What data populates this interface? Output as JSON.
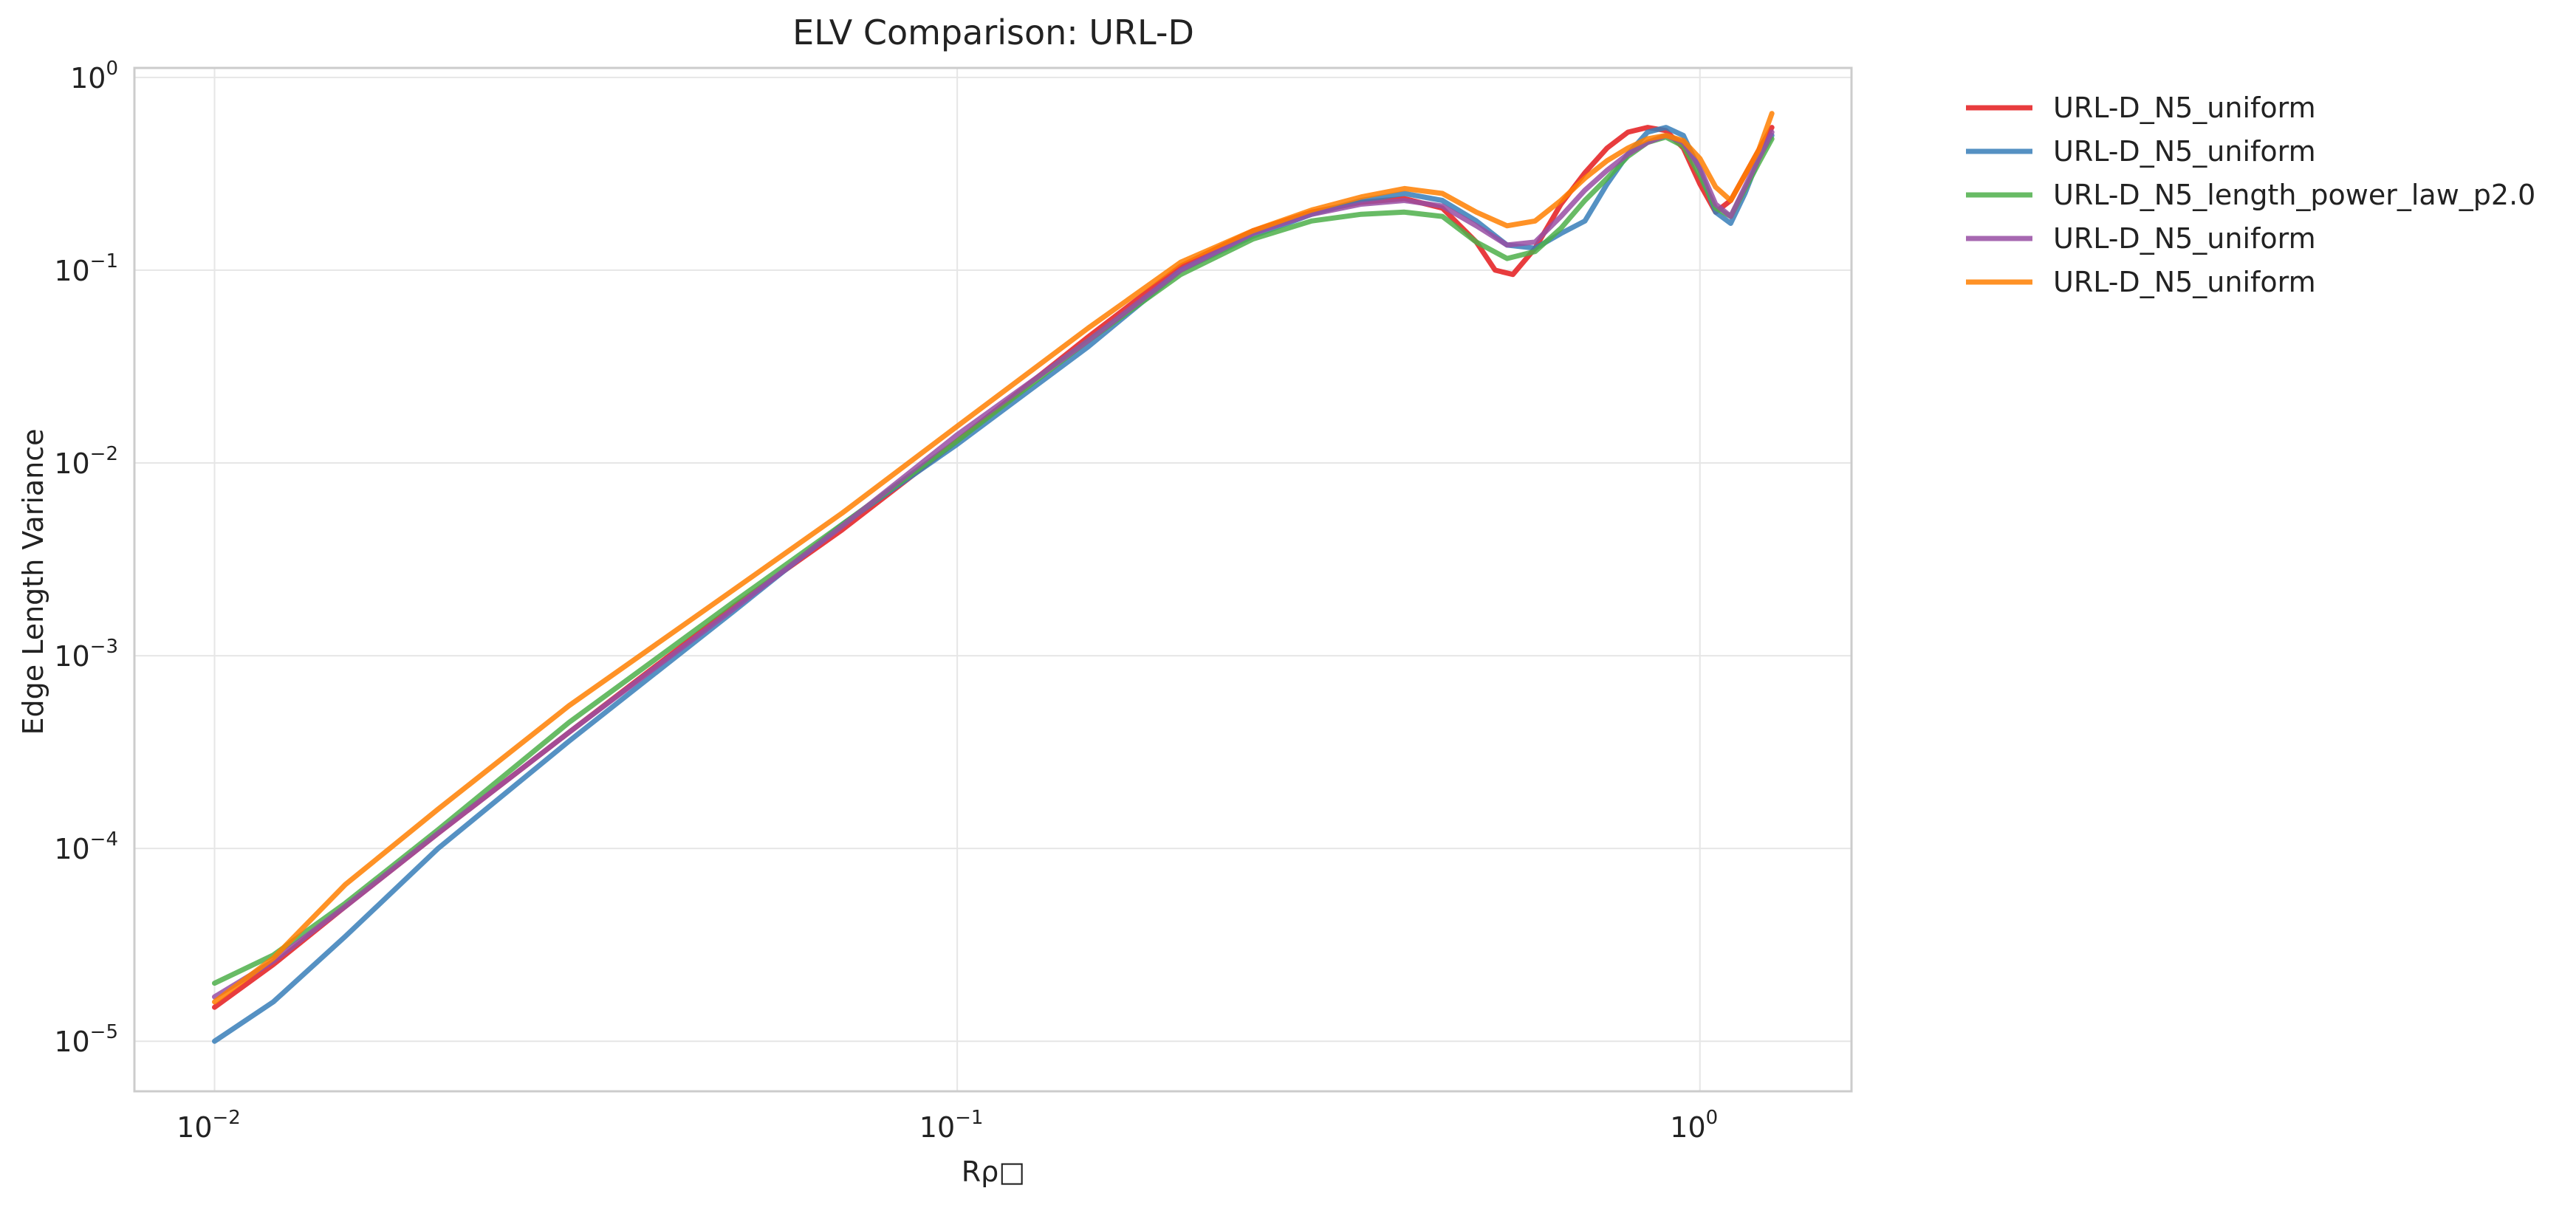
{
  "chart_data": {
    "type": "line",
    "title": "ELV Comparison: URL-D",
    "xlabel": "Rρ□",
    "ylabel": "Edge Length Variance",
    "xscale": "log",
    "yscale": "log",
    "xlim": [
      0.0078,
      1.6
    ],
    "ylim": [
      5.5e-06,
      1.12
    ],
    "grid": true,
    "legend": "outside top-right",
    "x_ticks": [
      {
        "base": "10",
        "exp": "−2"
      },
      {
        "base": "10",
        "exp": "−1"
      },
      {
        "base": "10",
        "exp": "0"
      }
    ],
    "x_tick_values": [
      0.01,
      0.1,
      1
    ],
    "y_ticks": [
      {
        "base": "10",
        "exp": "−5"
      },
      {
        "base": "10",
        "exp": "−4"
      },
      {
        "base": "10",
        "exp": "−3"
      },
      {
        "base": "10",
        "exp": "−2"
      },
      {
        "base": "10",
        "exp": "−1"
      },
      {
        "base": "10",
        "exp": "0"
      }
    ],
    "y_tick_values": [
      1e-05,
      0.0001,
      0.001,
      0.01,
      0.1,
      1
    ],
    "series": [
      {
        "name": "URL-D_N5_uniform",
        "color": "#e41a1c",
        "points": [
          [
            0.01,
            1.5e-05
          ],
          [
            0.012,
            2.5e-05
          ],
          [
            0.015,
            5e-05
          ],
          [
            0.02,
            0.00012
          ],
          [
            0.03,
            0.0004
          ],
          [
            0.05,
            0.0018
          ],
          [
            0.07,
            0.0045
          ],
          [
            0.1,
            0.013
          ],
          [
            0.15,
            0.045
          ],
          [
            0.2,
            0.105
          ],
          [
            0.25,
            0.16
          ],
          [
            0.3,
            0.2
          ],
          [
            0.35,
            0.225
          ],
          [
            0.4,
            0.235
          ],
          [
            0.45,
            0.21
          ],
          [
            0.5,
            0.14
          ],
          [
            0.53,
            0.1
          ],
          [
            0.56,
            0.095
          ],
          [
            0.6,
            0.13
          ],
          [
            0.65,
            0.22
          ],
          [
            0.7,
            0.32
          ],
          [
            0.75,
            0.43
          ],
          [
            0.8,
            0.52
          ],
          [
            0.85,
            0.55
          ],
          [
            0.9,
            0.53
          ],
          [
            0.95,
            0.43
          ],
          [
            1.0,
            0.28
          ],
          [
            1.05,
            0.2
          ],
          [
            1.1,
            0.23
          ],
          [
            1.2,
            0.42
          ],
          [
            1.25,
            0.55
          ]
        ]
      },
      {
        "name": "URL-D_N5_uniform",
        "color": "#377eb8",
        "points": [
          [
            0.01,
            1e-05
          ],
          [
            0.012,
            1.6e-05
          ],
          [
            0.015,
            3.5e-05
          ],
          [
            0.02,
            0.0001
          ],
          [
            0.03,
            0.00036
          ],
          [
            0.05,
            0.0017
          ],
          [
            0.07,
            0.0048
          ],
          [
            0.1,
            0.0125
          ],
          [
            0.15,
            0.04
          ],
          [
            0.2,
            0.1
          ],
          [
            0.25,
            0.15
          ],
          [
            0.3,
            0.195
          ],
          [
            0.35,
            0.23
          ],
          [
            0.4,
            0.25
          ],
          [
            0.45,
            0.23
          ],
          [
            0.5,
            0.18
          ],
          [
            0.55,
            0.135
          ],
          [
            0.6,
            0.13
          ],
          [
            0.65,
            0.155
          ],
          [
            0.7,
            0.18
          ],
          [
            0.75,
            0.28
          ],
          [
            0.8,
            0.4
          ],
          [
            0.85,
            0.52
          ],
          [
            0.9,
            0.55
          ],
          [
            0.95,
            0.5
          ],
          [
            1.0,
            0.33
          ],
          [
            1.05,
            0.2
          ],
          [
            1.1,
            0.175
          ],
          [
            1.15,
            0.25
          ],
          [
            1.2,
            0.38
          ],
          [
            1.25,
            0.5
          ]
        ]
      },
      {
        "name": "URL-D_N5_length_power_law_p2.0",
        "color": "#4daf4a",
        "points": [
          [
            0.01,
            2e-05
          ],
          [
            0.012,
            2.8e-05
          ],
          [
            0.015,
            5.2e-05
          ],
          [
            0.02,
            0.000125
          ],
          [
            0.03,
            0.00045
          ],
          [
            0.05,
            0.0019
          ],
          [
            0.07,
            0.0048
          ],
          [
            0.1,
            0.013
          ],
          [
            0.15,
            0.043
          ],
          [
            0.2,
            0.095
          ],
          [
            0.25,
            0.145
          ],
          [
            0.3,
            0.18
          ],
          [
            0.35,
            0.195
          ],
          [
            0.4,
            0.2
          ],
          [
            0.45,
            0.19
          ],
          [
            0.5,
            0.14
          ],
          [
            0.55,
            0.115
          ],
          [
            0.6,
            0.125
          ],
          [
            0.65,
            0.165
          ],
          [
            0.7,
            0.23
          ],
          [
            0.75,
            0.3
          ],
          [
            0.8,
            0.39
          ],
          [
            0.85,
            0.46
          ],
          [
            0.9,
            0.49
          ],
          [
            0.95,
            0.44
          ],
          [
            1.0,
            0.31
          ],
          [
            1.05,
            0.21
          ],
          [
            1.1,
            0.19
          ],
          [
            1.2,
            0.36
          ],
          [
            1.25,
            0.48
          ]
        ]
      },
      {
        "name": "URL-D_N5_uniform",
        "color": "#984ea3",
        "points": [
          [
            0.01,
            1.7e-05
          ],
          [
            0.012,
            2.6e-05
          ],
          [
            0.015,
            5e-05
          ],
          [
            0.02,
            0.00012
          ],
          [
            0.03,
            0.0004
          ],
          [
            0.05,
            0.00175
          ],
          [
            0.07,
            0.0047
          ],
          [
            0.1,
            0.014
          ],
          [
            0.15,
            0.043
          ],
          [
            0.2,
            0.1
          ],
          [
            0.25,
            0.155
          ],
          [
            0.3,
            0.195
          ],
          [
            0.35,
            0.22
          ],
          [
            0.4,
            0.23
          ],
          [
            0.45,
            0.215
          ],
          [
            0.5,
            0.17
          ],
          [
            0.55,
            0.135
          ],
          [
            0.6,
            0.14
          ],
          [
            0.65,
            0.19
          ],
          [
            0.7,
            0.26
          ],
          [
            0.75,
            0.33
          ],
          [
            0.8,
            0.4
          ],
          [
            0.85,
            0.46
          ],
          [
            0.9,
            0.5
          ],
          [
            0.95,
            0.46
          ],
          [
            1.0,
            0.34
          ],
          [
            1.05,
            0.22
          ],
          [
            1.1,
            0.19
          ],
          [
            1.2,
            0.38
          ],
          [
            1.25,
            0.52
          ]
        ]
      },
      {
        "name": "URL-D_N5_uniform",
        "color": "#ff7f00",
        "points": [
          [
            0.01,
            1.6e-05
          ],
          [
            0.012,
            2.7e-05
          ],
          [
            0.015,
            6.5e-05
          ],
          [
            0.02,
            0.00016
          ],
          [
            0.03,
            0.00055
          ],
          [
            0.05,
            0.0022
          ],
          [
            0.07,
            0.0055
          ],
          [
            0.1,
            0.0155
          ],
          [
            0.15,
            0.05
          ],
          [
            0.2,
            0.11
          ],
          [
            0.25,
            0.16
          ],
          [
            0.3,
            0.205
          ],
          [
            0.35,
            0.24
          ],
          [
            0.4,
            0.265
          ],
          [
            0.45,
            0.25
          ],
          [
            0.5,
            0.2
          ],
          [
            0.55,
            0.17
          ],
          [
            0.6,
            0.18
          ],
          [
            0.65,
            0.23
          ],
          [
            0.7,
            0.3
          ],
          [
            0.75,
            0.37
          ],
          [
            0.8,
            0.43
          ],
          [
            0.85,
            0.48
          ],
          [
            0.9,
            0.5
          ],
          [
            0.95,
            0.47
          ],
          [
            1.0,
            0.38
          ],
          [
            1.05,
            0.27
          ],
          [
            1.1,
            0.23
          ],
          [
            1.2,
            0.42
          ],
          [
            1.25,
            0.65
          ]
        ]
      }
    ]
  }
}
